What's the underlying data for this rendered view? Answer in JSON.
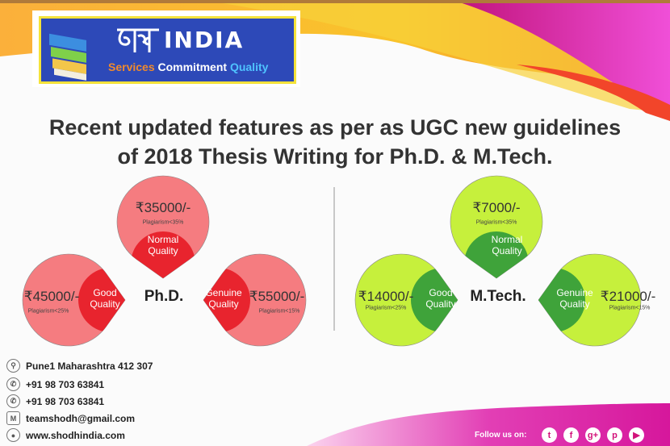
{
  "logo": {
    "hindi": "शोध",
    "brand": "INDIA",
    "tagline": [
      "Services",
      "Commitment",
      "Quality"
    ]
  },
  "headline": [
    "Recent updated features as per as UGC new guidelines",
    "of 2018 Thesis Writing for Ph.D. & M.Tech."
  ],
  "phd": {
    "label": "Ph.D.",
    "color": "#f57c80",
    "dark": "#e8242e",
    "plans": [
      {
        "price": "₹35000/-",
        "plagiarism": "Plagiarism<35%",
        "quality": [
          "Normal",
          "Quality"
        ]
      },
      {
        "price": "₹45000/-",
        "plagiarism": "Plagiarism<25%",
        "quality": [
          "Good",
          "Quality"
        ]
      },
      {
        "price": "₹55000/-",
        "plagiarism": "Plagiarism<15%",
        "quality": [
          "Genuine",
          "Quality"
        ]
      }
    ]
  },
  "mtech": {
    "label": "M.Tech.",
    "color": "#c6f03c",
    "dark": "#3fa33a",
    "plans": [
      {
        "price": "₹7000/-",
        "plagiarism": "Plagiarism<35%",
        "quality": [
          "Normal",
          "Quality"
        ]
      },
      {
        "price": "₹14000/-",
        "plagiarism": "Plagiarism<25%",
        "quality": [
          "Good",
          "Quality"
        ]
      },
      {
        "price": "₹21000/-",
        "plagiarism": "Plagiarism<15%",
        "quality": [
          "Genuine",
          "Quality"
        ]
      }
    ]
  },
  "contacts": [
    {
      "icon": "location-pin-icon",
      "text": "Pune1 Maharashtra 412 307"
    },
    {
      "icon": "phone-icon",
      "text": "+91 98 703 63841"
    },
    {
      "icon": "whatsapp-icon",
      "text": "+91 98 703 63841"
    },
    {
      "icon": "mail-icon",
      "text": "teamshodh@gmail.com"
    },
    {
      "icon": "globe-icon",
      "text": "www.shodhindia.com"
    }
  ],
  "follow": {
    "label": "Follow us on:",
    "networks": [
      "twitter",
      "facebook",
      "google-plus",
      "pinterest",
      "youtube"
    ]
  }
}
